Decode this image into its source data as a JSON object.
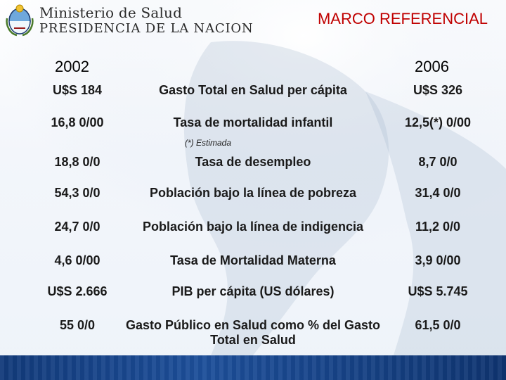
{
  "header": {
    "ministry_line1": "Ministerio de Salud",
    "ministry_line2": "PRESIDENCIA DE LA NACION",
    "title": "MARCO REFERENCIAL",
    "title_color": "#c00000"
  },
  "years": {
    "left": "2002",
    "right": "2006"
  },
  "footnote": "(*) Estimada",
  "rows": [
    {
      "left": "U$S 184",
      "label": "Gasto Total en Salud per cápita",
      "right": "U$S 326"
    },
    {
      "left": "16,8 0/00",
      "label": "Tasa de mortalidad infantil",
      "right": "12,5(*) 0/00"
    },
    {
      "left": "18,8 0/0",
      "label": "Tasa de desempleo",
      "right": "8,7 0/0"
    },
    {
      "left": "54,3 0/0",
      "label": "Población bajo la línea de pobreza",
      "right": "31,4 0/0"
    },
    {
      "left": "24,7 0/0",
      "label": "Población bajo la línea de indigencia",
      "right": "11,2 0/0"
    },
    {
      "left": "4,6 0/00",
      "label": "Tasa de Mortalidad Materna",
      "right": "3,9 0/00"
    },
    {
      "left": "U$S 2.666",
      "label": "PIB per cápita (US dólares)",
      "right": "U$S 5.745"
    },
    {
      "left": "55 0/0",
      "label": "Gasto Público en Salud como % del Gasto Total en Salud",
      "right": "61,5 0/0"
    }
  ],
  "colors": {
    "footer": "#1d4f9a",
    "text": "#1a1a1a"
  }
}
